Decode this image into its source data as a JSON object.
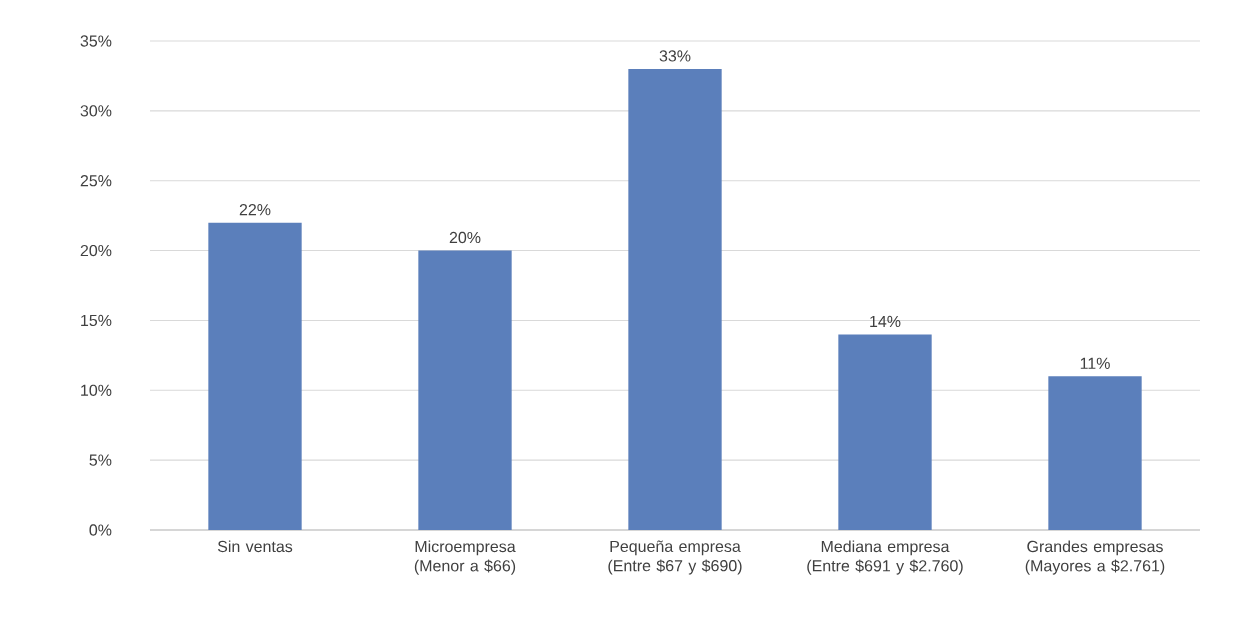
{
  "chart_data": {
    "type": "bar",
    "categories": [
      "Sin ventas",
      "Microempresa (Menor a $66)",
      "Pequeña empresa (Entre $67 y $690)",
      "Mediana empresa (Entre $691 y $2.760)",
      "Grandes empresas (Mayores a $2.761)"
    ],
    "values": [
      22,
      20,
      33,
      14,
      11
    ],
    "value_labels": [
      "22%",
      "20%",
      "33%",
      "14%",
      "11%"
    ],
    "color": "#5b7fbb",
    "ylim": [
      0,
      35
    ],
    "yticks": [
      {
        "value": 0,
        "label": "0%"
      },
      {
        "value": 5,
        "label": "5%"
      },
      {
        "value": 10,
        "label": "10%"
      },
      {
        "value": 15,
        "label": "15%"
      },
      {
        "value": 20,
        "label": "20%"
      },
      {
        "value": 25,
        "label": "25%"
      },
      {
        "value": 30,
        "label": "30%"
      },
      {
        "value": 35,
        "label": "35%"
      }
    ],
    "grid": "y"
  }
}
